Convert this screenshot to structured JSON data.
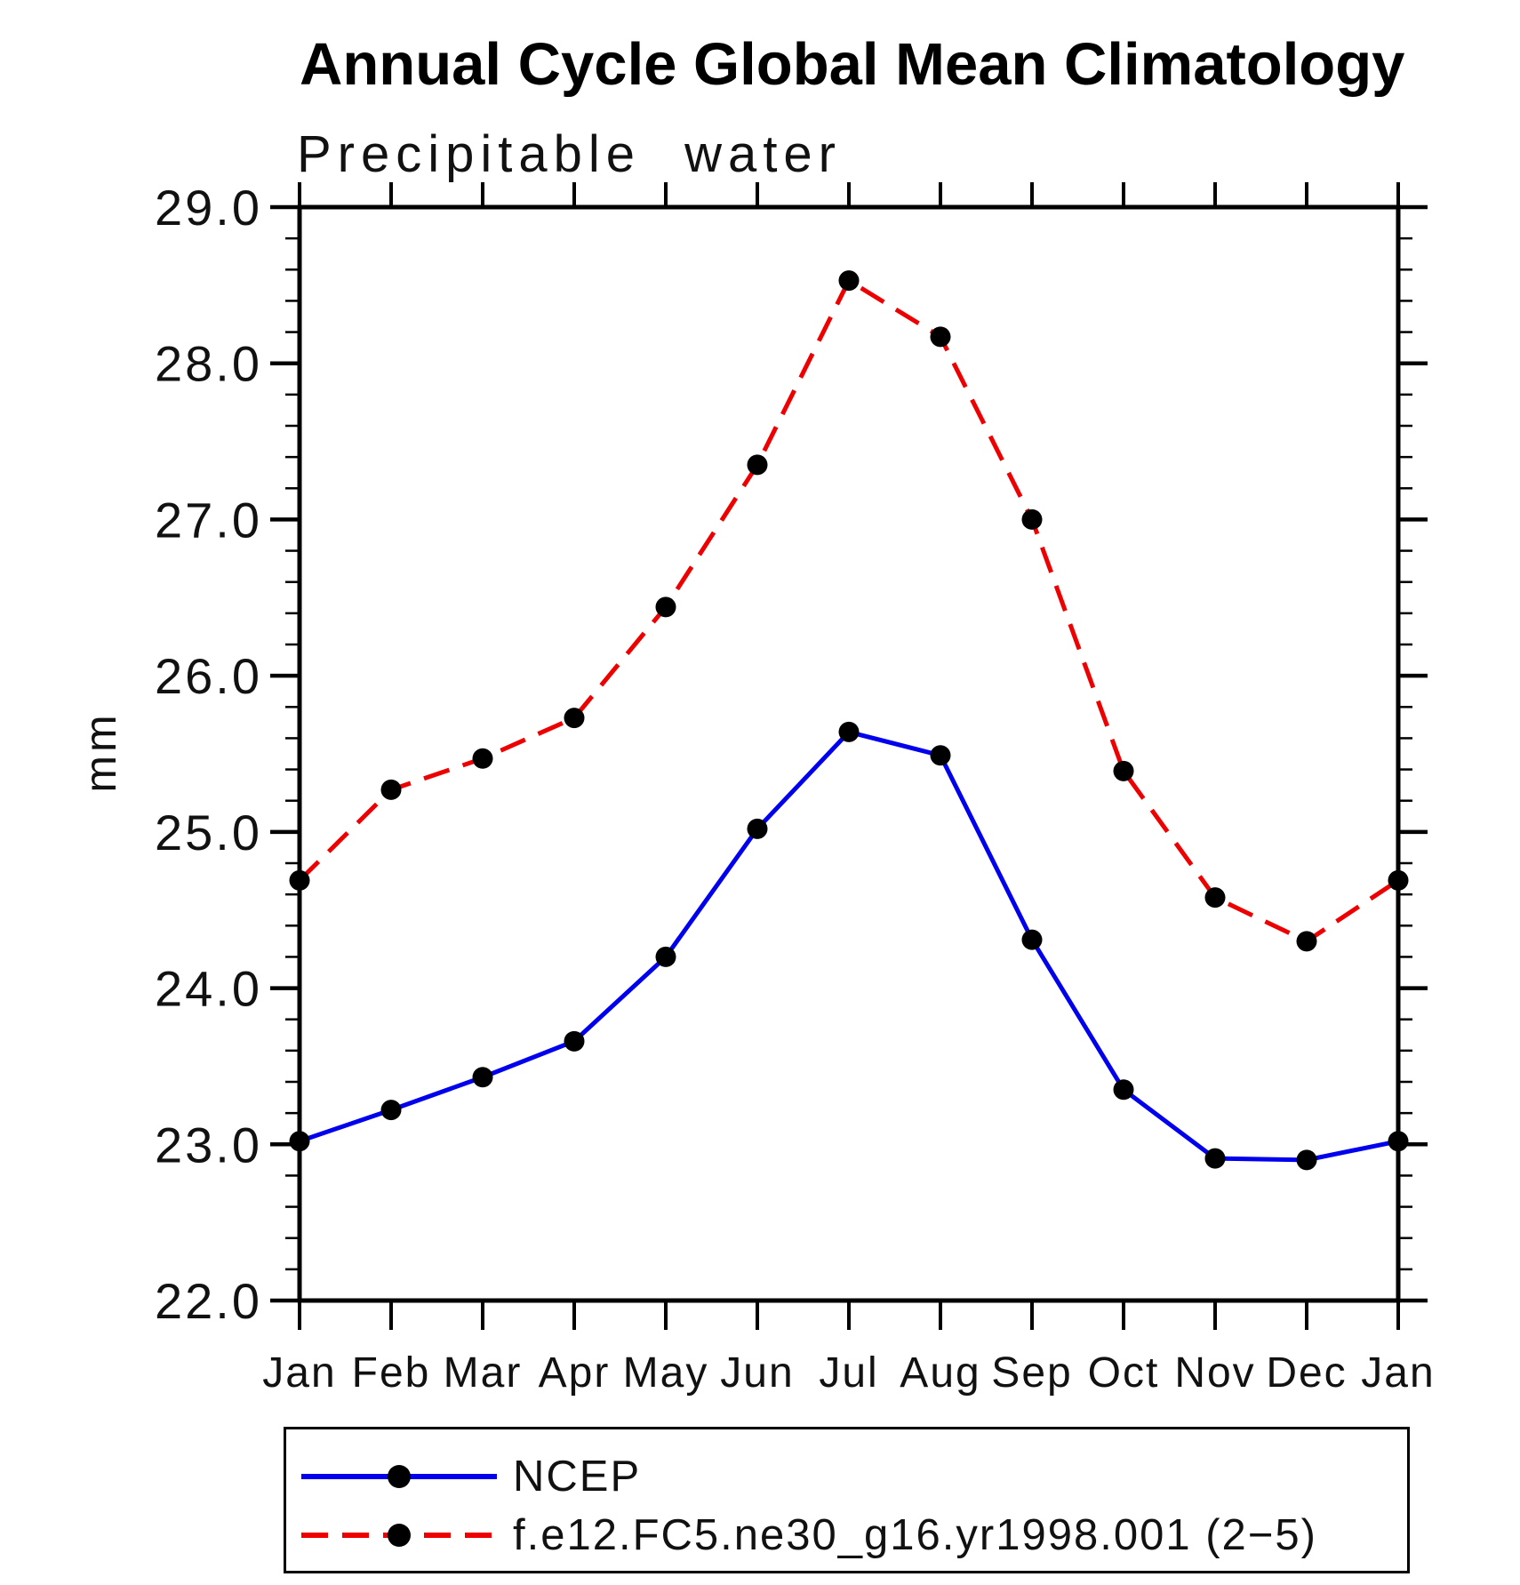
{
  "title": "Annual Cycle Global Mean Climatology",
  "subtitle": "Precipitable water",
  "y_axis_label": "mm",
  "legend": {
    "position": "bottom",
    "items": [
      {
        "label": "NCEP",
        "color": "#0000ee",
        "line_style": "solid",
        "marker": "filled-circle",
        "marker_color": "#000000"
      },
      {
        "label": "f.e12.FC5.ne30_g16.yr1998.001 (2−5)",
        "color": "#ee0000",
        "line_style": "dashed",
        "marker": "filled-circle",
        "marker_color": "#000000"
      }
    ]
  },
  "chart_data": {
    "type": "line",
    "title": "Annual Cycle Global Mean Climatology",
    "subtitle": "Precipitable water",
    "xlabel": "",
    "ylabel": "mm",
    "categories": [
      "Jan",
      "Feb",
      "Mar",
      "Apr",
      "May",
      "Jun",
      "Jul",
      "Aug",
      "Sep",
      "Oct",
      "Nov",
      "Dec",
      "Jan"
    ],
    "y_tick_labels": [
      "29.0",
      "28.0",
      "27.0",
      "26.0",
      "25.0",
      "24.0",
      "23.0",
      "22.0"
    ],
    "ylim": [
      22.0,
      29.0
    ],
    "major_tick_step": 1.0,
    "minor_tick_step": 0.2,
    "grid": false,
    "legend_position": "bottom",
    "marker_color": "#000000",
    "axis_color": "#000000",
    "series": [
      {
        "name": "NCEP",
        "color": "#0000ee",
        "dash": "solid",
        "values": [
          23.02,
          23.22,
          23.43,
          23.66,
          24.2,
          25.02,
          25.64,
          25.49,
          24.31,
          23.35,
          22.91,
          22.9,
          23.02
        ]
      },
      {
        "name": "f.e12.FC5.ne30_g16.yr1998.001 (2−5)",
        "color": "#ee0000",
        "dash": "dashed",
        "values": [
          24.69,
          25.27,
          25.47,
          25.73,
          26.44,
          27.35,
          28.53,
          28.17,
          27.0,
          25.39,
          24.58,
          24.3,
          24.69
        ]
      }
    ]
  }
}
